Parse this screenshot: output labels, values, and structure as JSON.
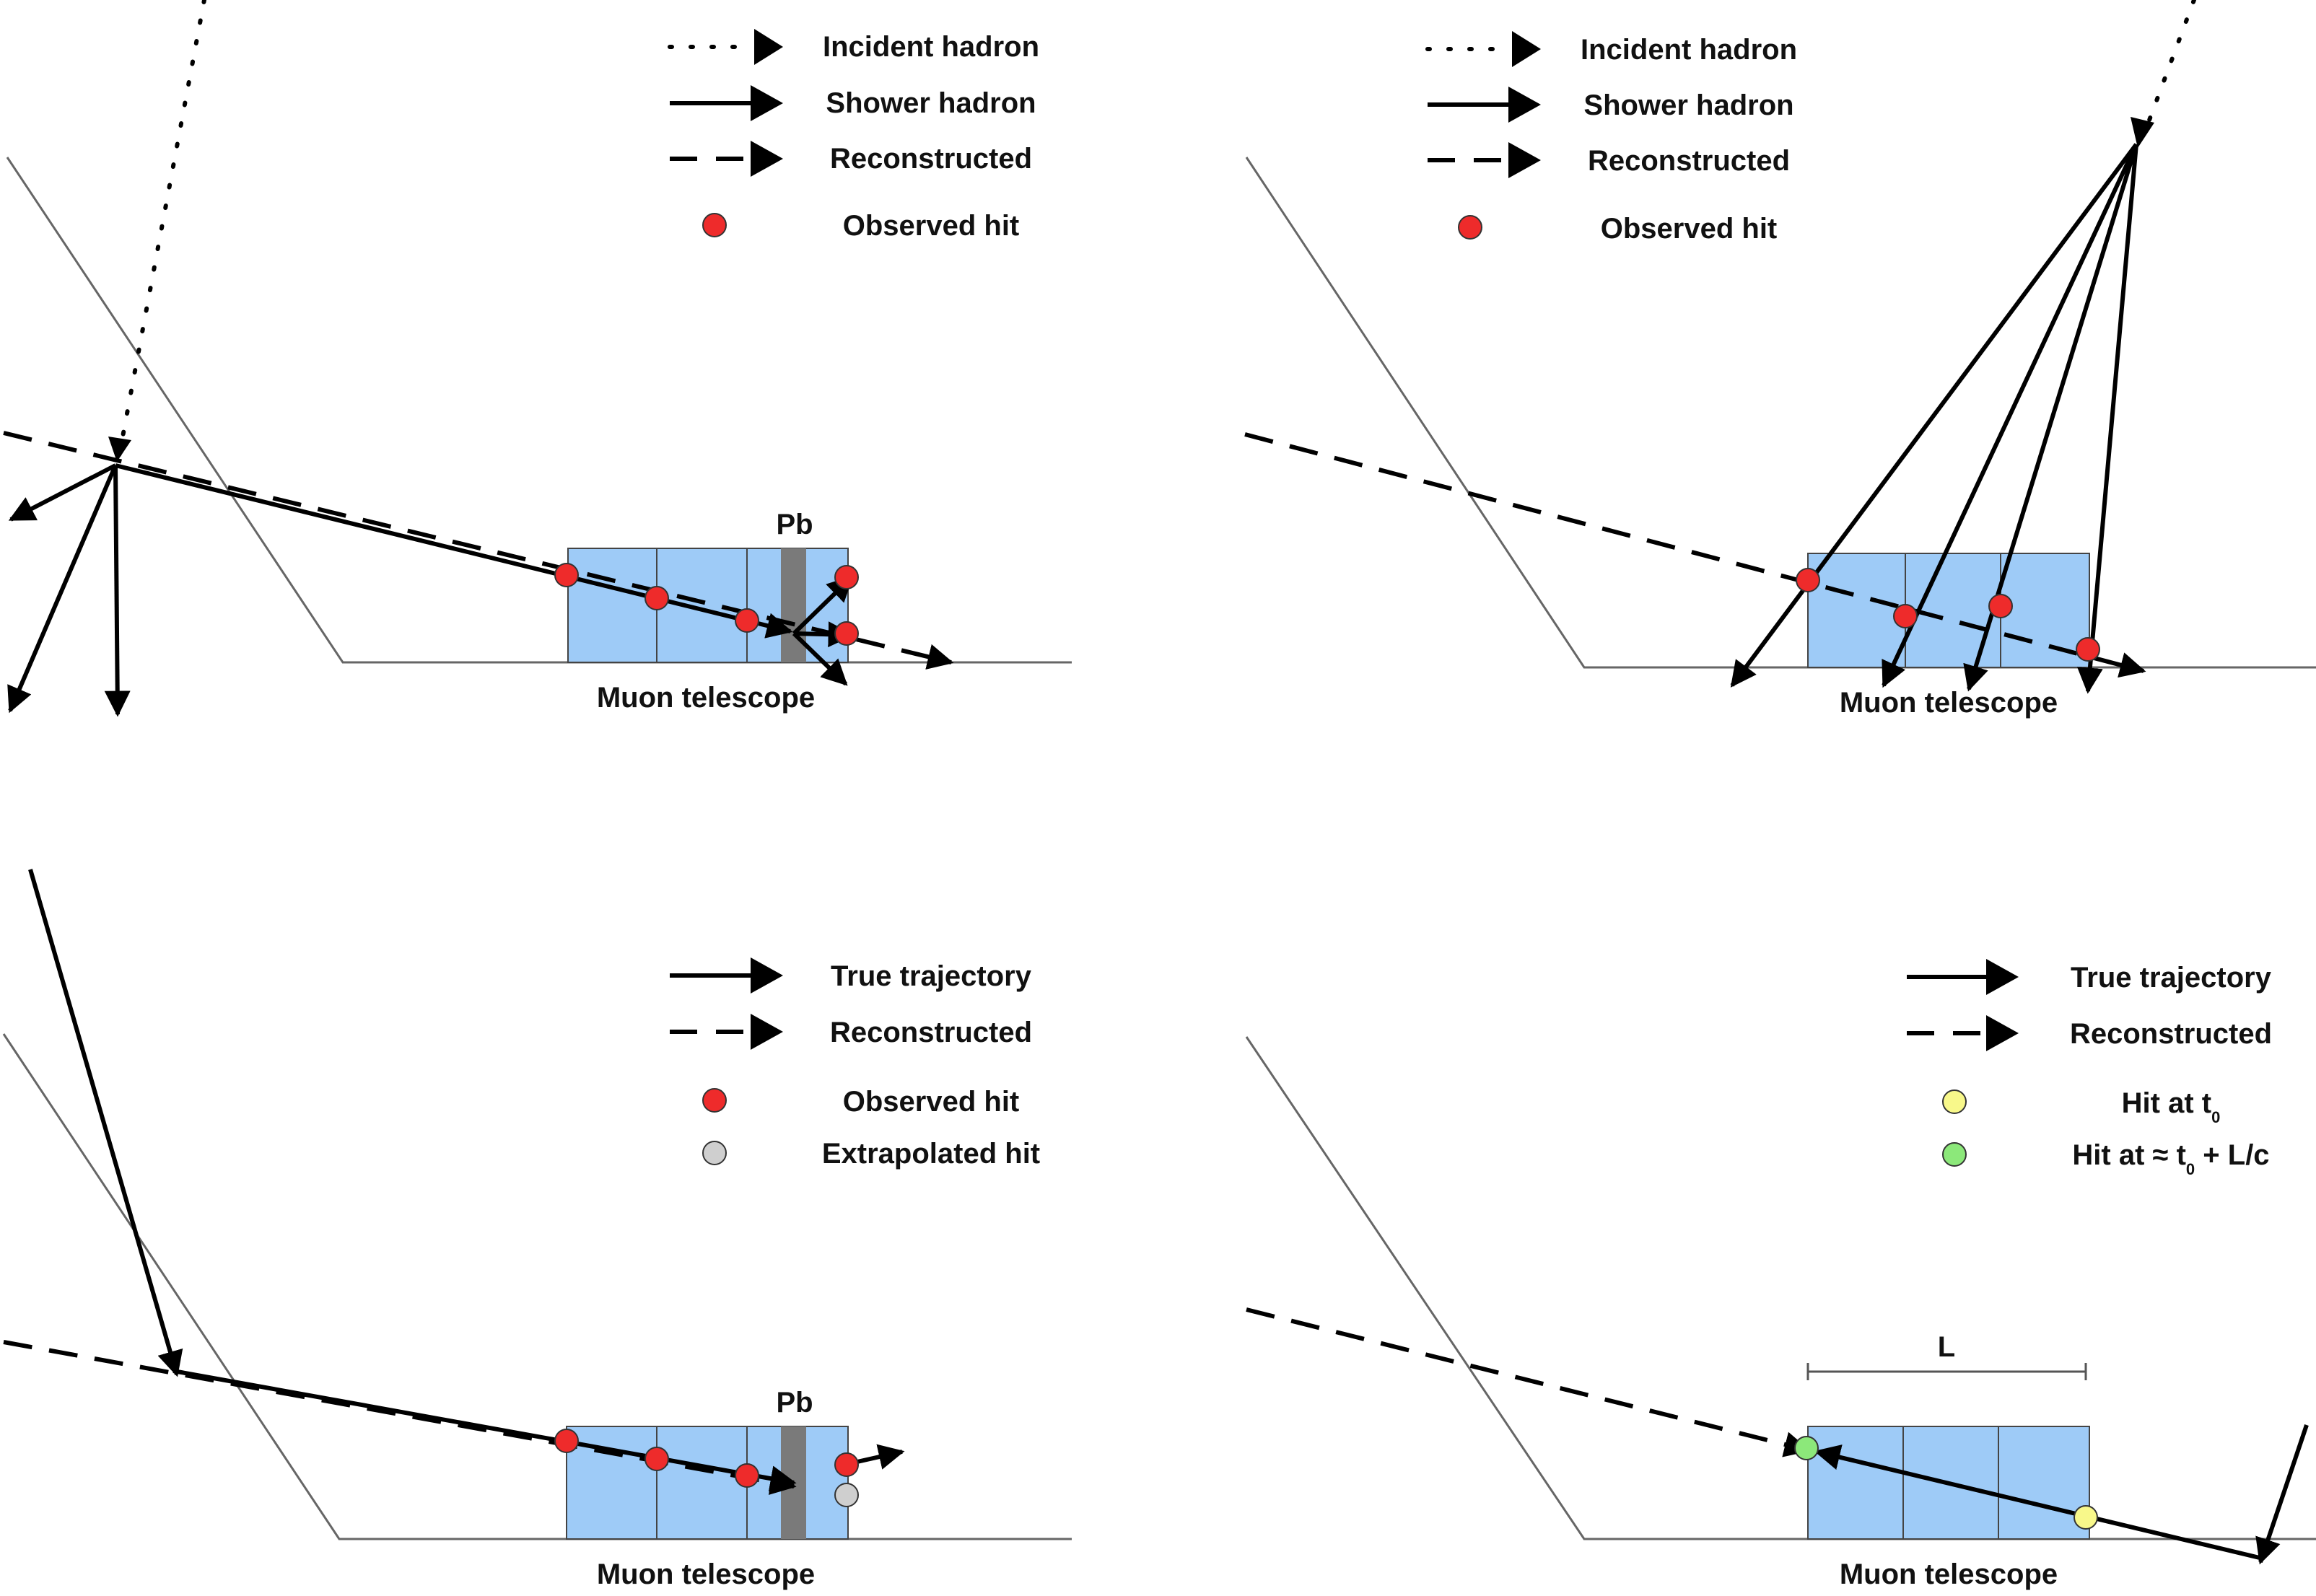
{
  "panels": [
    {
      "id": "top-left",
      "legend": [
        {
          "style": "dotted",
          "label": "Incident hadron"
        },
        {
          "style": "solid",
          "label": "Shower hadron"
        },
        {
          "style": "dashed",
          "label": "Reconstructed"
        },
        {
          "style": "hit-red",
          "label": "Observed hit"
        }
      ],
      "telescope_label": "Muon telescope",
      "absorber_label": "Pb"
    },
    {
      "id": "top-right",
      "legend": [
        {
          "style": "dotted",
          "label": "Incident hadron"
        },
        {
          "style": "solid",
          "label": "Shower hadron"
        },
        {
          "style": "dashed",
          "label": "Reconstructed"
        },
        {
          "style": "hit-red",
          "label": "Observed hit"
        }
      ],
      "telescope_label": "Muon telescope"
    },
    {
      "id": "bottom-left",
      "legend": [
        {
          "style": "solid",
          "label": "True trajectory"
        },
        {
          "style": "dashed",
          "label": "Reconstructed"
        },
        {
          "style": "hit-red",
          "label": "Observed hit"
        },
        {
          "style": "hit-grey",
          "label": "Extrapolated hit"
        }
      ],
      "telescope_label": "Muon telescope",
      "absorber_label": "Pb"
    },
    {
      "id": "bottom-right",
      "legend": [
        {
          "style": "solid",
          "label": "True trajectory"
        },
        {
          "style": "dashed",
          "label": "Reconstructed"
        },
        {
          "style": "hit-yellow",
          "label": "Hit at t",
          "subscript": "0"
        },
        {
          "style": "hit-green",
          "label": "Hit at ≈ t",
          "subscript": "0",
          "suffix": " + L/c"
        }
      ],
      "telescope_label": "Muon telescope",
      "length_label": "L"
    }
  ],
  "colors": {
    "hit_red": "#ee2b2b",
    "hit_grey": "#cfcfcf",
    "hit_yellow": "#f8f88a",
    "hit_green": "#8ce87a",
    "telescope_fill": "#9ecbf7",
    "absorber_fill": "#7a7a7a",
    "terrain": "#666666",
    "line": "#000000"
  }
}
